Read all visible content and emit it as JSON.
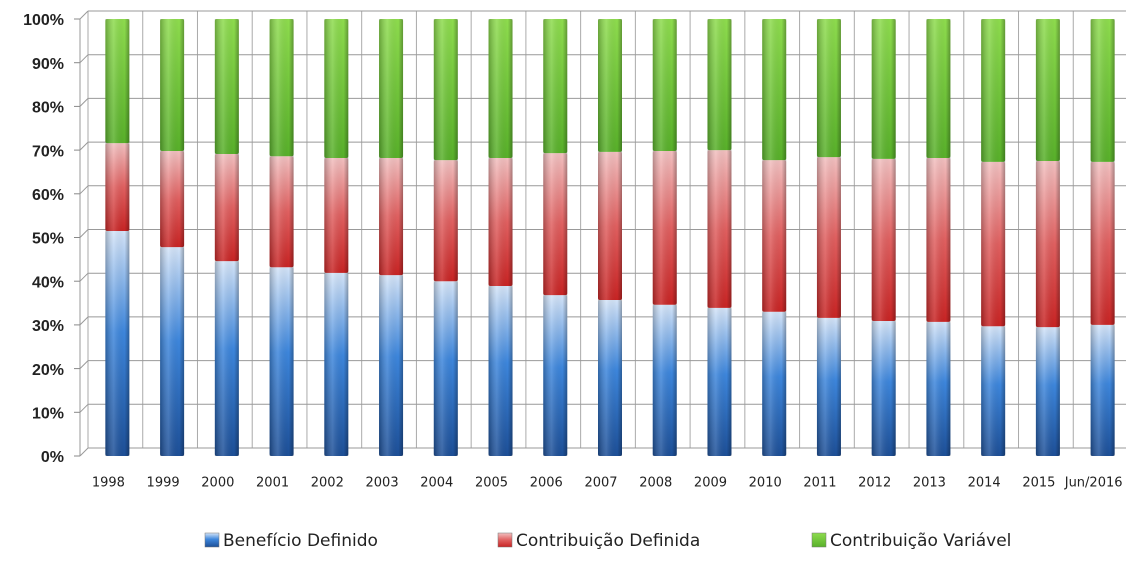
{
  "chart_data": {
    "type": "stacked_bar",
    "categories": [
      "1998",
      "1999",
      "2000",
      "2001",
      "2002",
      "2003",
      "2004",
      "2005",
      "2006",
      "2007",
      "2008",
      "2009",
      "2010",
      "2011",
      "2012",
      "2013",
      "2014",
      "2015",
      "Jun/2016"
    ],
    "series": [
      {
        "name": "Benefício Definido",
        "color": "#2f6fc4",
        "values": [
          51.5,
          47.8,
          44.6,
          43.2,
          41.9,
          41.4,
          40.0,
          38.9,
          36.8,
          35.7,
          34.6,
          33.9,
          33.0,
          31.6,
          30.9,
          30.7,
          29.7,
          29.5,
          30.0
        ]
      },
      {
        "name": "Contribuição Definida",
        "color": "#d83a3a",
        "values": [
          20.1,
          22.0,
          24.5,
          25.4,
          26.3,
          26.8,
          27.7,
          29.3,
          32.5,
          33.9,
          35.2,
          36.1,
          34.7,
          36.8,
          37.1,
          37.5,
          37.6,
          38.0,
          37.3
        ]
      },
      {
        "name": "Contribuição Variável",
        "color": "#6cc43a",
        "values": [
          28.4,
          30.2,
          30.9,
          31.4,
          31.8,
          31.8,
          32.3,
          31.8,
          30.7,
          30.4,
          30.2,
          30.0,
          32.3,
          31.6,
          32.0,
          31.8,
          32.7,
          32.5,
          32.7
        ]
      }
    ],
    "ylim": [
      0,
      100
    ],
    "yticks": [
      {
        "value": 0,
        "label": "0%"
      },
      {
        "value": 10,
        "label": "10%"
      },
      {
        "value": 20,
        "label": "20%"
      },
      {
        "value": 30,
        "label": "30%"
      },
      {
        "value": 40,
        "label": "40%"
      },
      {
        "value": 50,
        "label": "50%"
      },
      {
        "value": 60,
        "label": "60%"
      },
      {
        "value": 70,
        "label": "70%"
      },
      {
        "value": 80,
        "label": "80%"
      },
      {
        "value": 90,
        "label": "90%"
      },
      {
        "value": 100,
        "label": "100%"
      }
    ],
    "grid": true,
    "legend": "bottom"
  }
}
